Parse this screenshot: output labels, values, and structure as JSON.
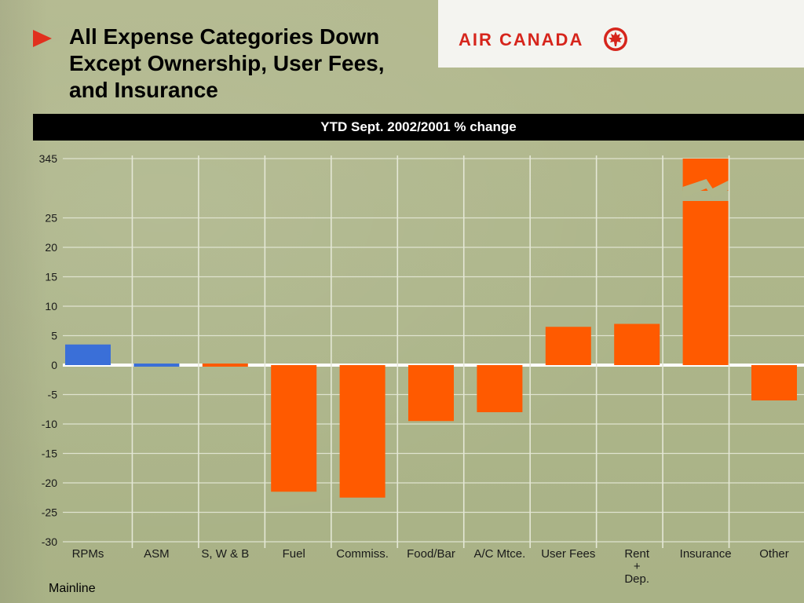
{
  "header": {
    "title_line1": "All Expense Categories Down",
    "title_line2": "Except Ownership, User Fees,",
    "title_line3": "and Insurance",
    "logo_text": "AIR CANADA",
    "subtitle": "YTD Sept. 2002/2001 % change"
  },
  "footer": {
    "note": "Mainline"
  },
  "colors": {
    "positive_ops": "#3a6fd8",
    "expense": "#ff5a00",
    "accent": "#e1301e"
  },
  "chart_data": {
    "type": "bar",
    "categories": [
      "RPMs",
      "ASM",
      "S, W & B",
      "Fuel",
      "Commiss.",
      "Food/Bar",
      "A/C Mtce.",
      "User Fees",
      "Rent + Dep.",
      "Insurance",
      "Other"
    ],
    "category_labels": [
      [
        "RPMs"
      ],
      [
        "ASM"
      ],
      [
        "S, W & B"
      ],
      [
        "Fuel"
      ],
      [
        "Commiss."
      ],
      [
        "Food/Bar"
      ],
      [
        "A/C Mtce."
      ],
      [
        "User Fees"
      ],
      [
        "Rent",
        "+",
        "Dep."
      ],
      [
        "Insurance"
      ],
      [
        "Other"
      ]
    ],
    "values": [
      3.5,
      -0.5,
      -0.5,
      -21.5,
      -22.5,
      -9.5,
      -8,
      6.5,
      7,
      345,
      -6
    ],
    "bar_colors": [
      "#3a6fd8",
      "#3a6fd8",
      "#ff5a00",
      "#ff5a00",
      "#ff5a00",
      "#ff5a00",
      "#ff5a00",
      "#ff5a00",
      "#ff5a00",
      "#ff5a00",
      "#ff5a00"
    ],
    "y_ticks": [
      "345",
      "25",
      "20",
      "15",
      "10",
      "5",
      "0",
      "-5",
      "-10",
      "-15",
      "-20",
      "-25",
      "-30"
    ],
    "ylim": [
      -30,
      345
    ],
    "axis_break": {
      "from": 25,
      "to": 345
    },
    "grid": true
  }
}
